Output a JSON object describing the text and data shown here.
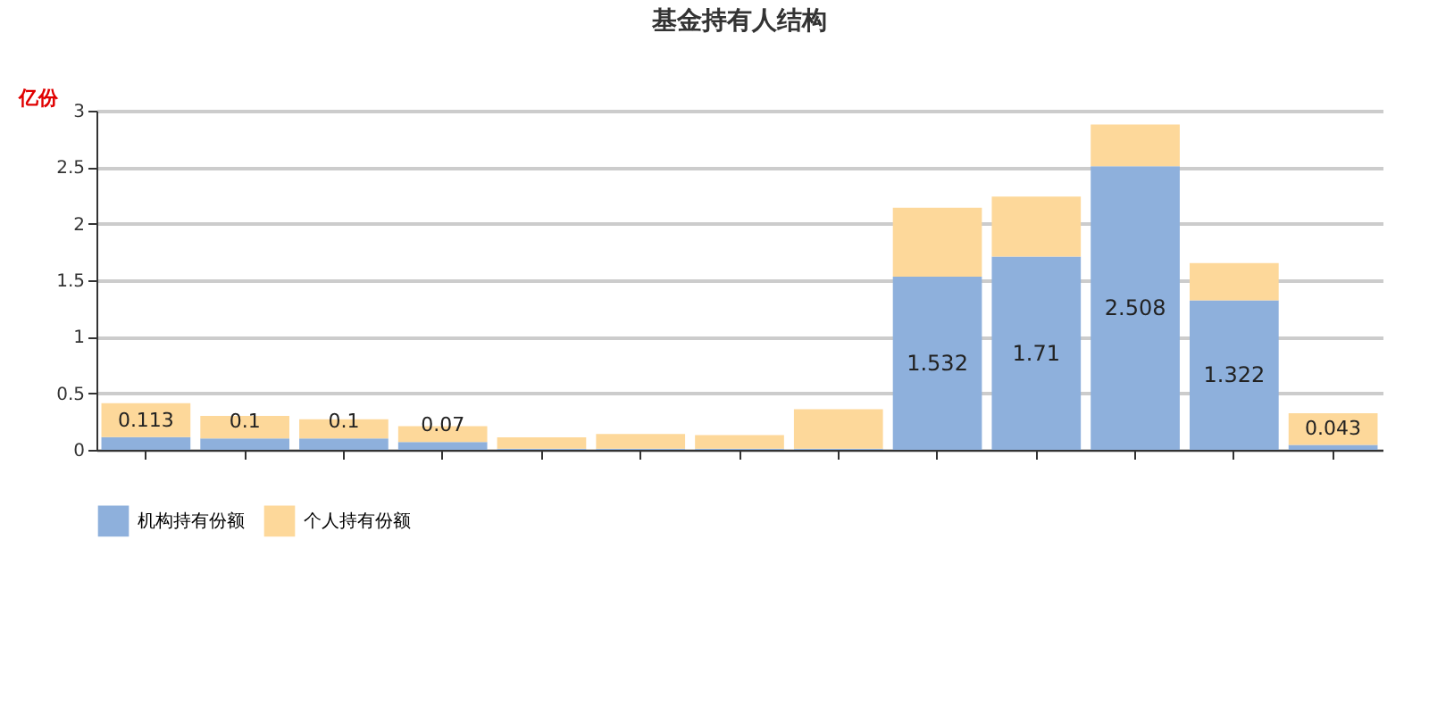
{
  "chart_data": {
    "type": "bar",
    "title": "基金持有人结构",
    "ylabel": "亿份",
    "stacked": true,
    "categories": [
      null,
      null,
      null,
      null,
      null,
      null,
      null,
      null,
      null,
      null,
      null,
      null,
      null
    ],
    "series": [
      {
        "name": "机构持有份额",
        "color": "#8eb0dc",
        "values": [
          0.113,
          0.1,
          0.1,
          0.07,
          0.01,
          0.01,
          0.01,
          0.01,
          1.532,
          1.71,
          2.508,
          1.322,
          0.043
        ],
        "value_labels": [
          "0.113",
          "0.1",
          "0.1",
          "0.07",
          null,
          null,
          null,
          null,
          "1.532",
          "1.71",
          "2.508",
          "1.322",
          "0.043"
        ]
      },
      {
        "name": "个人持有份额",
        "color": "#fdd89a",
        "values": [
          0.3,
          0.2,
          0.17,
          0.14,
          0.1,
          0.13,
          0.12,
          0.35,
          0.61,
          0.53,
          0.37,
          0.33,
          0.28
        ]
      }
    ],
    "ylim": [
      0,
      3
    ],
    "yticks": [
      0,
      0.5,
      1,
      1.5,
      2,
      2.5,
      3
    ],
    "grid": "y",
    "legend": "bottom"
  }
}
